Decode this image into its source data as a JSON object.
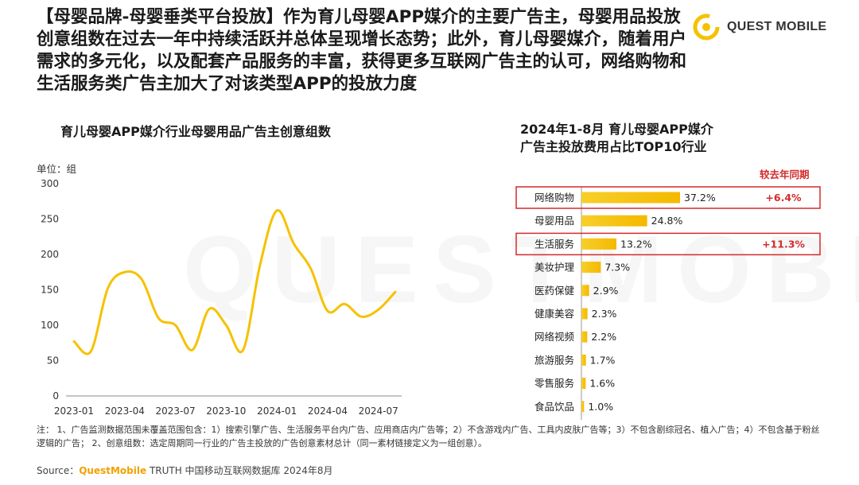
{
  "headline": "【母婴品牌-母婴垂类平台投放】作为育儿母婴APP媒介的主要广告主，母婴用品投放创意组数在过去一年中持续活跃并总体呈现增长态势；此外，育儿母婴媒介，随着用户需求的多元化，以及配套产品服务的丰富，获得更多互联网广告主的认可，网络购物和生活服务类广告主加大了对该类型APP的投放力度",
  "logo": {
    "text": "QUEST MOBILE",
    "color": "#f5c200"
  },
  "watermark": "QUESTMOBILE",
  "compare_header": "较去年同期",
  "notes": "注：  1、广告监测数据范围未覆盖范围包含：1）搜索引擎广告、生活服务平台内广告、应用商店内广告等；2）不含游戏内广告、工具内皮肤广告等；3）不包含剧综冠名、植入广告；4）不包含基于粉丝逻辑的广告；  2、创意组数：选定周期同一行业的广告主投放的广告创意素材总计（同一素材链接定义为一组创意）。",
  "source": {
    "label": "Source：",
    "brand": "QuestMobile",
    "rest": " TRUTH 中国移动互联网数据库 2024年8月"
  },
  "colors": {
    "line": "#f5c200",
    "bar": "#f5b800",
    "highlight": "#d42b2b"
  },
  "chart_data": [
    {
      "type": "line",
      "title": "育儿母婴APP媒介行业母婴用品广告主创意组数",
      "ylabel": "单位：组",
      "ylim": [
        0,
        300
      ],
      "yticks": [
        0,
        50,
        100,
        150,
        200,
        250,
        300
      ],
      "xtick_labels": [
        "2023-01",
        "2023-04",
        "2023-07",
        "2023-10",
        "2024-01",
        "2024-04",
        "2024-07"
      ],
      "x": [
        "2023-01",
        "2023-02",
        "2023-03",
        "2023-04",
        "2023-05",
        "2023-06",
        "2023-07",
        "2023-08",
        "2023-09",
        "2023-10",
        "2023-11",
        "2023-12",
        "2024-01",
        "2024-02",
        "2024-03",
        "2024-04",
        "2024-05",
        "2024-06",
        "2024-07",
        "2024-08"
      ],
      "values": [
        77,
        63,
        152,
        175,
        165,
        110,
        100,
        65,
        123,
        100,
        65,
        185,
        262,
        215,
        180,
        120,
        130,
        112,
        122,
        147
      ],
      "grid": false
    },
    {
      "type": "bar",
      "orientation": "horizontal",
      "title": [
        "2024年1-8月 育儿母婴APP媒介",
        "广告主投放费用占比TOP10行业"
      ],
      "categories": [
        "网络购物",
        "母婴用品",
        "生活服务",
        "美妆护理",
        "医药保健",
        "健康美容",
        "网络视频",
        "旅游服务",
        "零售服务",
        "食品饮品"
      ],
      "values": [
        37.2,
        24.8,
        13.2,
        7.3,
        2.9,
        2.3,
        2.2,
        1.7,
        1.6,
        1.0
      ],
      "value_labels": [
        "37.2%",
        "24.8%",
        "13.2%",
        "7.3%",
        "2.9%",
        "2.3%",
        "2.2%",
        "1.7%",
        "1.6%",
        "1.0%"
      ],
      "yoy_change": [
        {
          "category": "网络购物",
          "label": "+6.4%"
        },
        {
          "category": "生活服务",
          "label": "+11.3%"
        }
      ]
    }
  ]
}
